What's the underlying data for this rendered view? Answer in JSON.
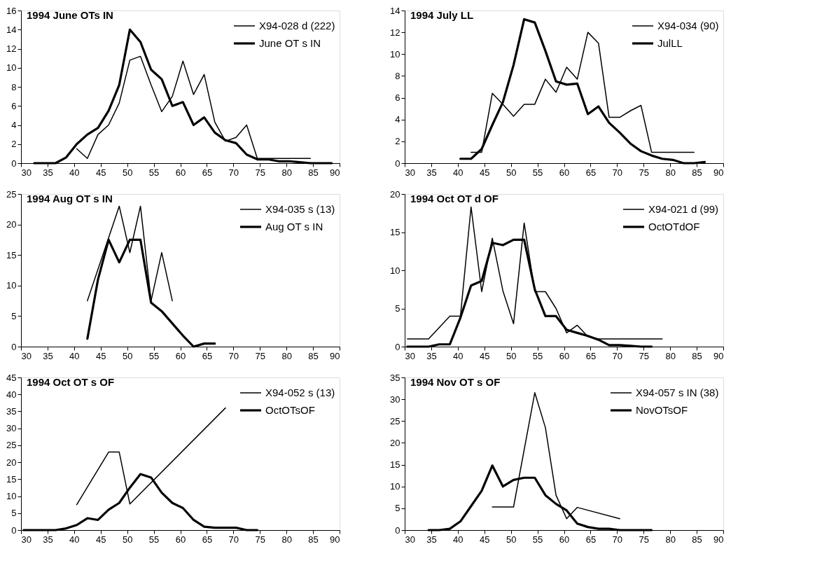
{
  "chart_data": [
    {
      "type": "line",
      "title": "1994 June OTs IN",
      "xlim": [
        30,
        90
      ],
      "xticks": [
        30,
        35,
        40,
        45,
        50,
        55,
        60,
        65,
        70,
        75,
        80,
        85,
        90
      ],
      "ylim": [
        0,
        16
      ],
      "yticks": [
        0,
        2,
        4,
        6,
        8,
        10,
        12,
        14,
        16
      ],
      "grid": false,
      "legend": "top right",
      "marker": "none",
      "line_style": "solid",
      "series": [
        {
          "name": "X94-028 d (222)",
          "color": "#000000",
          "x": [
            40.5,
            42.5,
            44.5,
            46.5,
            48.5,
            50.5,
            52.5,
            54.5,
            56.5,
            58.5,
            60.5,
            62.5,
            64.5,
            66.5,
            68.5,
            70.5,
            72.5,
            74.5,
            76.5,
            78.5,
            80.5,
            82.5,
            84.5
          ],
          "values": [
            1.5,
            0.5,
            3.0,
            4.0,
            6.3,
            10.8,
            11.2,
            8.2,
            5.4,
            7.0,
            10.7,
            7.2,
            9.3,
            4.3,
            2.3,
            2.7,
            4.0,
            0.5,
            0.5,
            0.5,
            0.5,
            0.5,
            0.5
          ]
        },
        {
          "name": "June OT s IN",
          "color": "#000000",
          "x": [
            32.5,
            34.5,
            36.5,
            38.5,
            40.5,
            42.5,
            44.5,
            46.5,
            48.5,
            50.5,
            52.5,
            54.5,
            56.5,
            58.5,
            60.5,
            62.5,
            64.5,
            66.5,
            68.5,
            70.5,
            72.5,
            74.5,
            76.5,
            78.5,
            80.5,
            82.5,
            84.5,
            86.5,
            88.5
          ],
          "values": [
            0,
            0,
            0,
            0.6,
            2.0,
            3.0,
            3.7,
            5.5,
            8.2,
            14.0,
            12.7,
            9.8,
            8.8,
            6.0,
            6.4,
            4.0,
            4.8,
            3.2,
            2.4,
            2.1,
            0.9,
            0.4,
            0.4,
            0.2,
            0.2,
            0.1,
            0,
            0,
            0
          ]
        }
      ]
    },
    {
      "type": "line",
      "title": "1994 July LL",
      "xlim": [
        30,
        90
      ],
      "xticks": [
        30,
        35,
        40,
        45,
        50,
        55,
        60,
        65,
        70,
        75,
        80,
        85,
        90
      ],
      "ylim": [
        0,
        14
      ],
      "yticks": [
        0,
        2,
        4,
        6,
        8,
        10,
        12,
        14
      ],
      "grid": false,
      "legend": "top right",
      "marker": "none",
      "line_style": "solid",
      "series": [
        {
          "name": "X94-034 (90)",
          "color": "#000000",
          "x": [
            42.5,
            44.5,
            46.5,
            48.5,
            50.5,
            52.5,
            54.5,
            56.5,
            58.5,
            60.5,
            62.5,
            64.5,
            66.5,
            68.5,
            70.5,
            72.5,
            74.5,
            76.5,
            78.5,
            80.5,
            82.5,
            84.5
          ],
          "values": [
            1.0,
            1.0,
            6.4,
            5.4,
            4.3,
            5.4,
            5.4,
            7.7,
            6.5,
            8.8,
            7.7,
            12.0,
            11.0,
            4.2,
            4.2,
            4.8,
            5.3,
            1.0,
            1.0,
            1.0,
            1.0,
            1.0
          ]
        },
        {
          "name": "JulLL",
          "color": "#000000",
          "x": [
            40.5,
            42.5,
            44.5,
            46.5,
            48.5,
            50.5,
            52.5,
            54.5,
            56.5,
            58.5,
            60.5,
            62.5,
            64.5,
            66.5,
            68.5,
            70.5,
            72.5,
            74.5,
            76.5,
            78.5,
            80.5,
            82.5,
            84.5,
            86.5
          ],
          "values": [
            0.4,
            0.4,
            1.3,
            3.5,
            5.6,
            9.0,
            13.2,
            12.9,
            10.3,
            7.5,
            7.2,
            7.3,
            4.5,
            5.2,
            3.7,
            2.8,
            1.8,
            1.1,
            0.7,
            0.4,
            0.3,
            0,
            0,
            0.1
          ]
        }
      ]
    },
    {
      "type": "line",
      "title": "1994 Aug OT s IN",
      "xlim": [
        30,
        90
      ],
      "xticks": [
        30,
        35,
        40,
        45,
        50,
        55,
        60,
        65,
        70,
        75,
        80,
        85,
        90
      ],
      "ylim": [
        0,
        25
      ],
      "yticks": [
        0,
        5,
        10,
        15,
        20,
        25
      ],
      "grid": false,
      "legend": "top right",
      "marker": "none",
      "line_style": "solid",
      "series": [
        {
          "name": "X94-035 s (13)",
          "color": "#000000",
          "x": [
            42.5,
            48.5,
            50.5,
            52.5,
            54.5,
            56.5,
            58.5
          ],
          "values": [
            7.5,
            23.0,
            15.4,
            23.0,
            7.5,
            15.4,
            7.5
          ]
        },
        {
          "name": "Aug OT s IN",
          "color": "#000000",
          "x": [
            42.5,
            44.5,
            46.5,
            48.5,
            50.5,
            52.5,
            54.5,
            56.5,
            58.5,
            60.5,
            62.5,
            64.5,
            66.5
          ],
          "values": [
            1.3,
            11.0,
            17.5,
            13.8,
            17.5,
            17.5,
            7.2,
            5.8,
            3.8,
            1.8,
            0,
            0.5,
            0.5
          ]
        }
      ]
    },
    {
      "type": "line",
      "title": "1994 Oct OT d OF",
      "xlim": [
        30,
        90
      ],
      "xticks": [
        30,
        35,
        40,
        45,
        50,
        55,
        60,
        65,
        70,
        75,
        80,
        85,
        90
      ],
      "ylim": [
        0,
        20
      ],
      "yticks": [
        0,
        5,
        10,
        15,
        20
      ],
      "grid": false,
      "legend": "top right",
      "marker": "none",
      "line_style": "solid",
      "series": [
        {
          "name": "X94-021 d (99)",
          "color": "#000000",
          "x": [
            30.5,
            34.5,
            38.5,
            40.5,
            42.5,
            44.5,
            46.5,
            48.5,
            50.5,
            52.5,
            54.5,
            56.5,
            58.5,
            60.5,
            62.5,
            64.5,
            66.5,
            68.5,
            70.5,
            72.5,
            74.5,
            76.5,
            78.5
          ],
          "values": [
            1.0,
            1.0,
            4.0,
            4.0,
            18.3,
            7.2,
            14.2,
            7.3,
            3.0,
            16.2,
            7.2,
            7.2,
            5.0,
            1.8,
            2.8,
            1.3,
            1.0,
            1.0,
            1.0,
            1.0,
            1.0,
            1.0,
            1.0
          ]
        },
        {
          "name": "OctOTdOF",
          "color": "#000000",
          "x": [
            30.5,
            34.5,
            36.5,
            38.5,
            40.5,
            42.5,
            44.5,
            46.5,
            48.5,
            50.5,
            52.5,
            54.5,
            56.5,
            58.5,
            60.5,
            62.5,
            64.5,
            66.5,
            68.5,
            70.5,
            72.5,
            74.5,
            76.5
          ],
          "values": [
            0,
            0,
            0.3,
            0.3,
            3.8,
            8.0,
            8.6,
            13.6,
            13.3,
            14.0,
            14.0,
            7.5,
            4.0,
            4.0,
            2.2,
            1.8,
            1.4,
            0.9,
            0.2,
            0.2,
            0.1,
            0,
            0
          ]
        }
      ]
    },
    {
      "type": "line",
      "title": "1994 Oct OT s OF",
      "xlim": [
        30,
        90
      ],
      "xticks": [
        30,
        35,
        40,
        45,
        50,
        55,
        60,
        65,
        70,
        75,
        80,
        85,
        90
      ],
      "ylim": [
        0,
        45
      ],
      "yticks": [
        0,
        5,
        10,
        15,
        20,
        25,
        30,
        35,
        40,
        45
      ],
      "grid": false,
      "legend": "top right",
      "marker": "none",
      "line_style": "solid",
      "series": [
        {
          "name": "X94-052 s (13)",
          "color": "#000000",
          "x": [
            40.5,
            46.5,
            48.5,
            50.5,
            68.5
          ],
          "values": [
            7.5,
            23.0,
            23.0,
            7.7,
            36.0
          ]
        },
        {
          "name": "OctOTsOF",
          "color": "#000000",
          "x": [
            30.5,
            32.5,
            34.5,
            36.5,
            38.5,
            40.5,
            42.5,
            44.5,
            46.5,
            48.5,
            50.5,
            52.5,
            54.5,
            56.5,
            58.5,
            60.5,
            62.5,
            64.5,
            66.5,
            68.5,
            70.5,
            72.5,
            74.5
          ],
          "values": [
            0,
            0,
            0,
            0,
            0.5,
            1.5,
            3.5,
            3.0,
            6.0,
            8.0,
            12.5,
            16.5,
            15.5,
            11.0,
            8.0,
            6.5,
            3.0,
            1.0,
            0.7,
            0.7,
            0.7,
            0,
            0
          ]
        }
      ]
    },
    {
      "type": "line",
      "title": "1994 Nov OT s OF",
      "xlim": [
        30,
        90
      ],
      "xticks": [
        30,
        35,
        40,
        45,
        50,
        55,
        60,
        65,
        70,
        75,
        80,
        85,
        90
      ],
      "ylim": [
        0,
        35
      ],
      "yticks": [
        0,
        5,
        10,
        15,
        20,
        25,
        30,
        35
      ],
      "grid": false,
      "legend": "top right",
      "marker": "none",
      "line_style": "solid",
      "series": [
        {
          "name": "X94-057 s IN (38)",
          "color": "#000000",
          "x": [
            46.5,
            50.5,
            54.5,
            56.5,
            58.5,
            60.5,
            62.5,
            70.5
          ],
          "values": [
            5.3,
            5.3,
            31.5,
            23.5,
            8.0,
            2.6,
            5.2,
            2.6
          ]
        },
        {
          "name": "NovOTsOF",
          "color": "#000000",
          "x": [
            34.5,
            36.5,
            38.5,
            40.5,
            42.5,
            44.5,
            46.5,
            48.5,
            50.5,
            52.5,
            54.5,
            56.5,
            58.5,
            60.5,
            62.5,
            64.5,
            66.5,
            68.5,
            70.5,
            72.5,
            74.5,
            76.5
          ],
          "values": [
            0,
            0,
            0.3,
            2.0,
            5.5,
            9.0,
            14.8,
            10.0,
            11.5,
            12.0,
            12.0,
            8.0,
            6.0,
            4.5,
            1.5,
            0.7,
            0.3,
            0.3,
            0,
            0,
            0,
            0
          ]
        }
      ]
    }
  ]
}
